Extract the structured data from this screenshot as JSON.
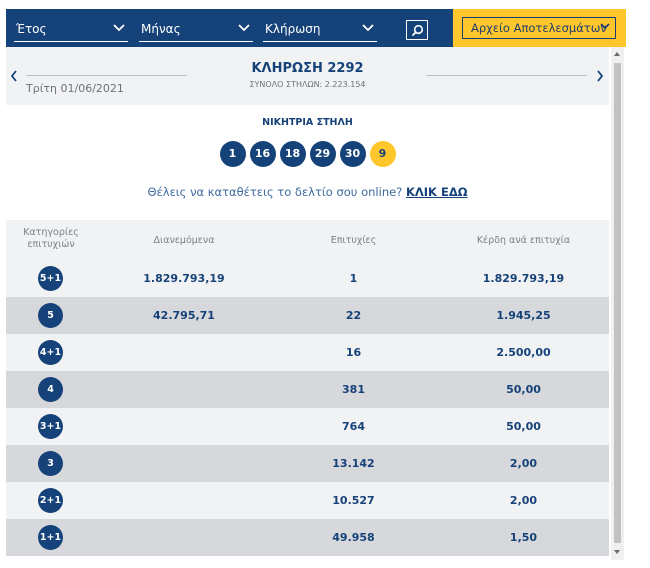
{
  "filters": {
    "year_label": "Έτος",
    "month_label": "Μήνας",
    "draw_label": "Κλήρωση",
    "archive_label": "Αρχείο Αποτελεσμάτων"
  },
  "draw": {
    "date": "Τρίτη 01/06/2021",
    "title": "ΚΛΗΡΩΣΗ 2292",
    "columns_total": "ΣΥΝΟΛΟ ΣΤΗΛΩΝ: 2.223.154",
    "winning_label": "ΝΙΚΗΤΡΙΑ ΣΤΗΛΗ",
    "numbers": [
      "1",
      "16",
      "18",
      "29",
      "30"
    ],
    "bonus": "9"
  },
  "online": {
    "text": "Θέλεις να καταθέτεις το δελτίο σου online?",
    "link": "ΚΛΙΚ ΕΔΩ"
  },
  "table": {
    "headers": {
      "category_1": "Κατηγορίες",
      "category_2": "επιτυχιών",
      "distributed": "Διανεμόμενα",
      "winners": "Επιτυχίες",
      "prize": "Κέρδη ανά επιτυχία"
    },
    "rows": [
      {
        "cat": "5+1",
        "dist": "1.829.793,19",
        "winners": "1",
        "prize": "1.829.793,19"
      },
      {
        "cat": "5",
        "dist": "42.795,71",
        "winners": "22",
        "prize": "1.945,25"
      },
      {
        "cat": "4+1",
        "dist": "",
        "winners": "16",
        "prize": "2.500,00"
      },
      {
        "cat": "4",
        "dist": "",
        "winners": "381",
        "prize": "50,00"
      },
      {
        "cat": "3+1",
        "dist": "",
        "winners": "764",
        "prize": "50,00"
      },
      {
        "cat": "3",
        "dist": "",
        "winners": "13.142",
        "prize": "2,00"
      },
      {
        "cat": "2+1",
        "dist": "",
        "winners": "10.527",
        "prize": "2,00"
      },
      {
        "cat": "1+1",
        "dist": "",
        "winners": "49.958",
        "prize": "1,50"
      }
    ]
  },
  "colors": {
    "primary": "#16427a",
    "accent": "#ffc72c",
    "row_light": "#f1f2f3",
    "row_dark": "#d6d8db"
  }
}
